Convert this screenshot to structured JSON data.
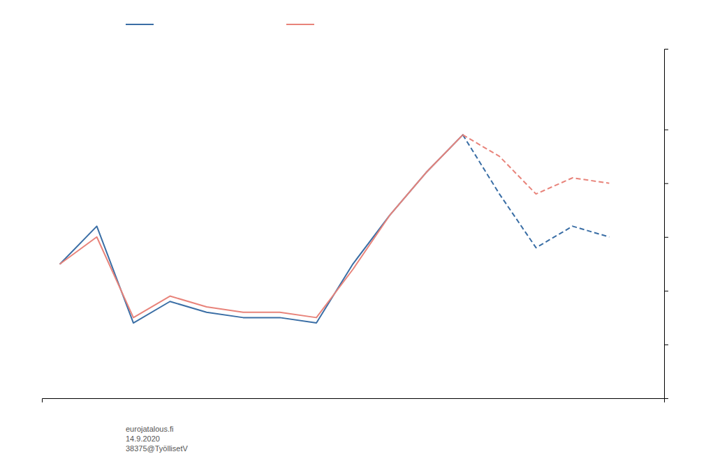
{
  "chart_data": {
    "type": "line",
    "x": [
      0,
      1,
      2,
      3,
      4,
      5,
      6,
      7,
      8,
      9,
      10,
      11,
      12,
      13,
      14,
      15
    ],
    "series": [
      {
        "color": "#3a6ea5",
        "line_style": "solid",
        "values": [
          55,
          62,
          44,
          48,
          46,
          45,
          45,
          44,
          55,
          64,
          72,
          79,
          null,
          null,
          null,
          null
        ]
      },
      {
        "color": "#e8837a",
        "line_style": "solid",
        "values": [
          55,
          60,
          45,
          49,
          47,
          46,
          46,
          45,
          54,
          64,
          72,
          79,
          null,
          null,
          null,
          null
        ]
      },
      {
        "color": "#3a6ea5",
        "line_style": "dashed",
        "values": [
          null,
          null,
          null,
          null,
          null,
          null,
          null,
          null,
          null,
          null,
          null,
          79,
          68,
          58,
          62,
          60
        ]
      },
      {
        "color": "#e8837a",
        "line_style": "dashed",
        "values": [
          null,
          null,
          null,
          null,
          null,
          null,
          null,
          null,
          null,
          null,
          null,
          79,
          75,
          68,
          71,
          70
        ]
      }
    ],
    "xlim": [
      -0.5,
      16.5
    ],
    "xticks": [],
    "ylim": [
      30,
      95
    ],
    "yticks": [
      40,
      50,
      60,
      70,
      80
    ],
    "tick_labels": false,
    "grid": false,
    "legend": "top",
    "annotations": [
      "eurojatalous.fi",
      "14.9.2020",
      "38375@TyöllisetV"
    ]
  }
}
